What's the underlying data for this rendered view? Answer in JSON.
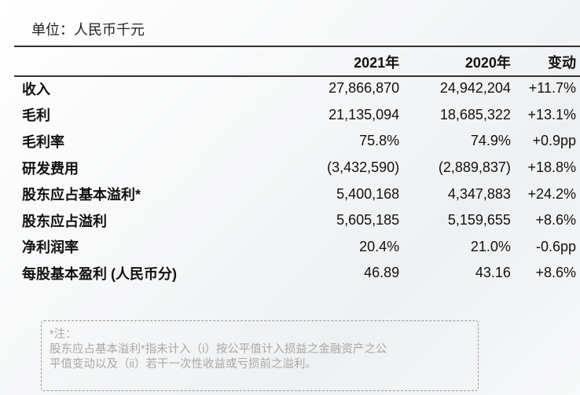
{
  "unit_label": "单位：人民币千元",
  "table": {
    "headers": [
      "",
      "2021年",
      "2020年",
      "变动"
    ],
    "rows": [
      {
        "label": "收入",
        "y2021": "27,866,870",
        "y2020": "24,942,204",
        "change": "+11.7%"
      },
      {
        "label": "毛利",
        "y2021": "21,135,094",
        "y2020": "18,685,322",
        "change": "+13.1%"
      },
      {
        "label": "毛利率",
        "y2021": "75.8%",
        "y2020": "74.9%",
        "change": "+0.9pp"
      },
      {
        "label": "研发费用",
        "y2021": "(3,432,590)",
        "y2020": "(2,889,837)",
        "change": "+18.8%"
      },
      {
        "label": "股东应占基本溢利*",
        "y2021": "5,400,168",
        "y2020": "4,347,883",
        "change": "+24.2%"
      },
      {
        "label": "股东应占溢利",
        "y2021": "5,605,185",
        "y2020": "5,159,655",
        "change": "+8.6%"
      },
      {
        "label": "净利润率",
        "y2021": "20.4%",
        "y2020": "21.0%",
        "change": "-0.6pp"
      },
      {
        "label": "每股基本盈利 (人民币分)",
        "y2021": "46.89",
        "y2020": "43.16",
        "change": "+8.6%"
      }
    ]
  },
  "note": {
    "title": "*注：",
    "line1": "股东应占基本溢利*指未计入（i）按公平值计入损益之金融资产之公",
    "line2": "平值变动以及（ii）若干一次性收益或亏损前之溢利。"
  }
}
